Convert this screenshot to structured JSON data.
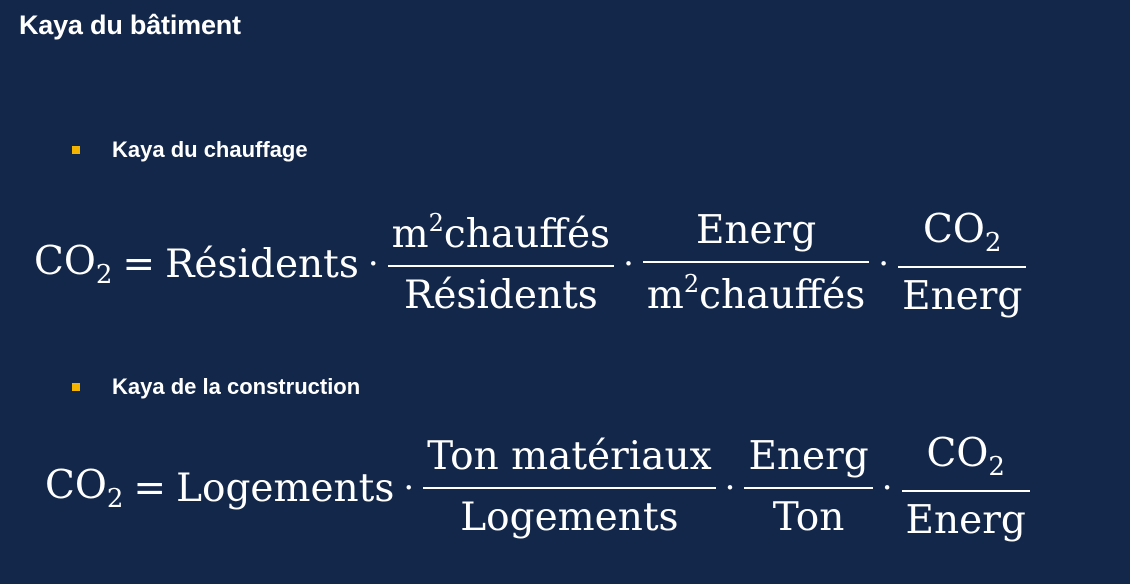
{
  "title": "Kaya du bâtiment",
  "accent_color": "#f5b400",
  "background_color": "#13274a",
  "sections": [
    {
      "heading": "Kaya du chauffage",
      "equation": {
        "lhs": "CO",
        "lhs_sub": "2",
        "equals": "=",
        "term": "Résidents",
        "dot": "·",
        "f1_num_base": "m",
        "f1_num_sup": "2",
        "f1_num_rest": "chauffés",
        "f1_den": "Résidents",
        "f2_num": "Energ",
        "f2_den_base": "m",
        "f2_den_sup": "2",
        "f2_den_rest": "chauffés",
        "f3_num": "CO",
        "f3_num_sub": "2",
        "f3_den": "Energ"
      }
    },
    {
      "heading": "Kaya de la construction",
      "equation": {
        "lhs": "CO",
        "lhs_sub": "2",
        "equals": "=",
        "term": "Logements",
        "dot": "·",
        "f1_num": "Ton matériaux",
        "f1_den": "Logements",
        "f2_num": "Energ",
        "f2_den": "Ton",
        "f3_num": "CO",
        "f3_num_sub": "2",
        "f3_den": "Energ"
      }
    }
  ]
}
